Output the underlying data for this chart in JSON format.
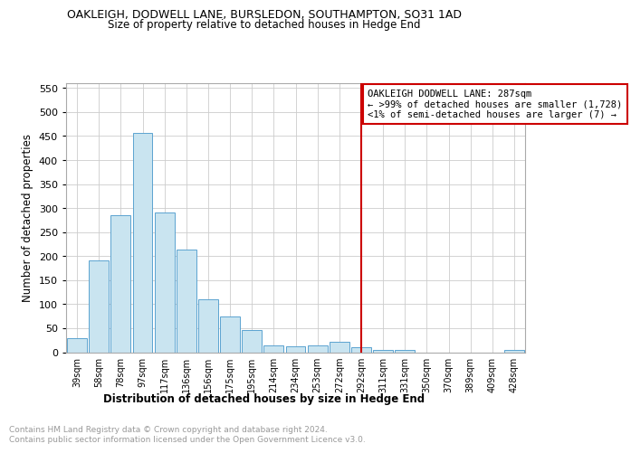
{
  "title": "OAKLEIGH, DODWELL LANE, BURSLEDON, SOUTHAMPTON, SO31 1AD",
  "subtitle": "Size of property relative to detached houses in Hedge End",
  "xlabel": "Distribution of detached houses by size in Hedge End",
  "ylabel": "Number of detached properties",
  "categories": [
    "39sqm",
    "58sqm",
    "78sqm",
    "97sqm",
    "117sqm",
    "136sqm",
    "156sqm",
    "175sqm",
    "195sqm",
    "214sqm",
    "234sqm",
    "253sqm",
    "272sqm",
    "292sqm",
    "311sqm",
    "331sqm",
    "350sqm",
    "370sqm",
    "389sqm",
    "409sqm",
    "428sqm"
  ],
  "values": [
    30,
    192,
    285,
    456,
    290,
    213,
    110,
    74,
    47,
    14,
    13,
    14,
    21,
    10,
    4,
    5,
    0,
    0,
    0,
    0,
    5
  ],
  "bar_color": "#c9e4f0",
  "bar_edge_color": "#5ba3d0",
  "vline_x_idx": 13,
  "vline_color": "#cc0000",
  "annotation_text": "OAKLEIGH DODWELL LANE: 287sqm\n← >99% of detached houses are smaller (1,728)\n<1% of semi-detached houses are larger (7) →",
  "annotation_box_edge_color": "#cc0000",
  "ylim": [
    0,
    560
  ],
  "yticks": [
    0,
    50,
    100,
    150,
    200,
    250,
    300,
    350,
    400,
    450,
    500,
    550
  ],
  "footer_line1": "Contains HM Land Registry data © Crown copyright and database right 2024.",
  "footer_line2": "Contains public sector information licensed under the Open Government Licence v3.0.",
  "background_color": "#ffffff",
  "grid_color": "#cccccc",
  "title_fontsize": 9.0,
  "subtitle_fontsize": 8.5,
  "ylabel_fontsize": 8.5,
  "xtick_fontsize": 7.0,
  "ytick_fontsize": 8.0,
  "annotation_fontsize": 7.5,
  "xlabel_fontsize": 8.5,
  "footer_fontsize": 6.5,
  "footer_color": "#999999"
}
